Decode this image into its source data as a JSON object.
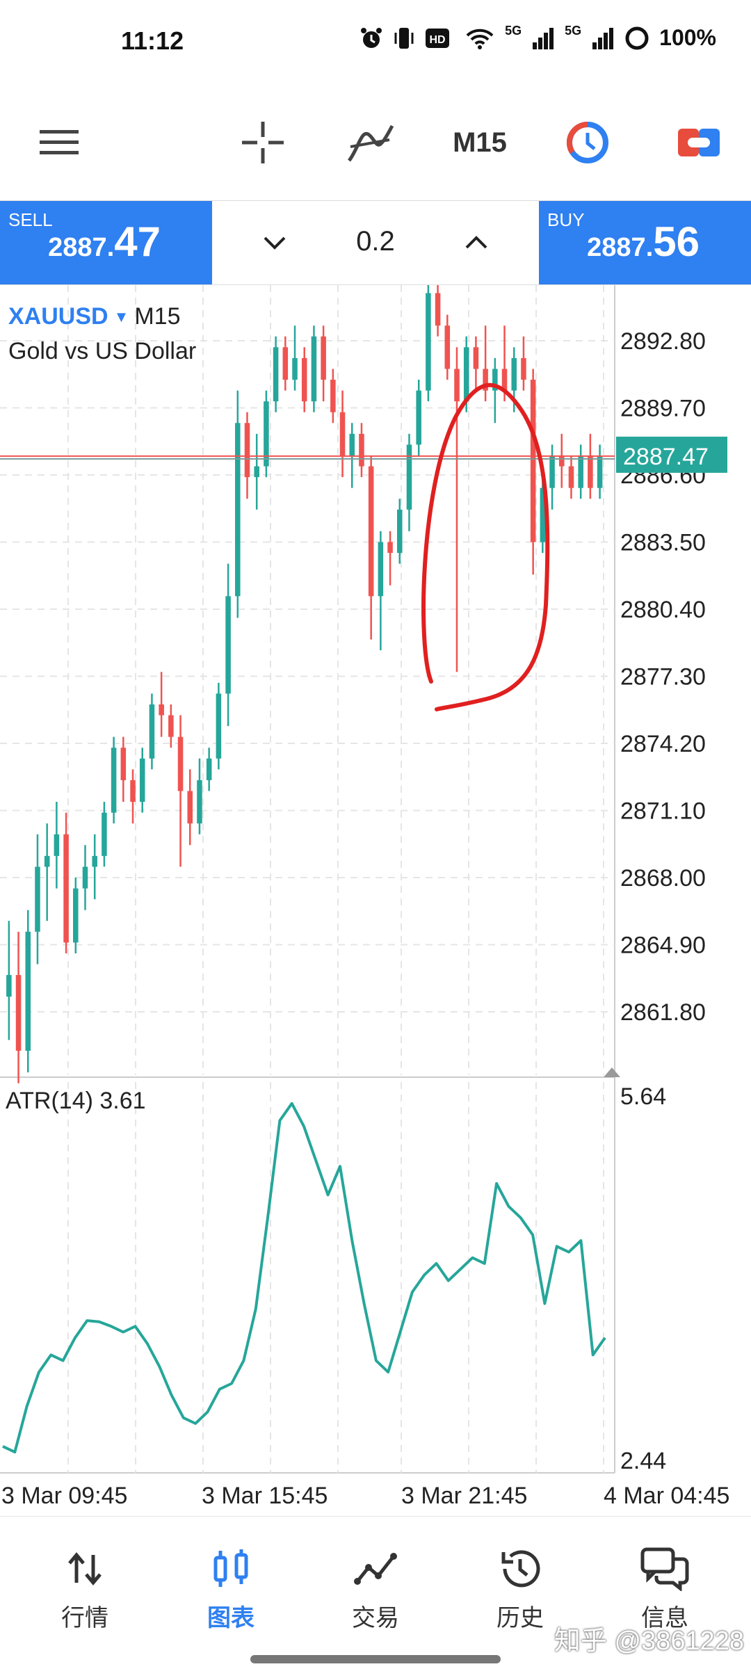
{
  "status_bar": {
    "time": "11:12",
    "network": "5G",
    "network2": "5G",
    "battery": "100%"
  },
  "toolbar": {
    "icons": [
      "menu-icon",
      "crosshair-icon",
      "indicators-icon",
      "clock-icon",
      "toggle-icon"
    ],
    "period": "M15"
  },
  "trade": {
    "sell_label": "SELL",
    "sell_prefix": "2887.",
    "sell_big": "47",
    "buy_label": "BUY",
    "buy_prefix": "2887.",
    "buy_big": "56",
    "lot": "0.2"
  },
  "chart": {
    "symbol": "XAUUSD",
    "period": "M15",
    "description": "Gold vs US Dollar",
    "current_price_label": "2887.47",
    "price_ticks": [
      "2892.80",
      "2889.70",
      "2886.60",
      "2883.50",
      "2880.40",
      "2877.30",
      "2874.20",
      "2871.10",
      "2868.00",
      "2864.90",
      "2861.80"
    ],
    "atr_label": "ATR(14) 3.61",
    "atr_ticks": [
      "5.64",
      "2.44"
    ],
    "time_labels": [
      "3 Mar 09:45",
      "3 Mar 15:45",
      "3 Mar 21:45",
      "4 Mar 04:45"
    ]
  },
  "chart_data": [
    {
      "type": "candlestick",
      "series": [
        {
          "name": "XAUUSD",
          "values": [
            {
              "o": 2862.5,
              "h": 2866.0,
              "l": 2860.5,
              "c": 2863.5
            },
            {
              "o": 2863.5,
              "h": 2865.5,
              "l": 2858.5,
              "c": 2860.0
            },
            {
              "o": 2860.0,
              "h": 2866.5,
              "l": 2859.0,
              "c": 2865.5
            },
            {
              "o": 2865.5,
              "h": 2870.0,
              "l": 2864.0,
              "c": 2868.5
            },
            {
              "o": 2868.5,
              "h": 2870.5,
              "l": 2866.0,
              "c": 2869.0
            },
            {
              "o": 2869.0,
              "h": 2871.5,
              "l": 2867.5,
              "c": 2870.0
            },
            {
              "o": 2870.0,
              "h": 2871.0,
              "l": 2864.5,
              "c": 2865.0
            },
            {
              "o": 2865.0,
              "h": 2868.0,
              "l": 2864.5,
              "c": 2867.5
            },
            {
              "o": 2867.5,
              "h": 2869.5,
              "l": 2866.5,
              "c": 2868.5
            },
            {
              "o": 2868.5,
              "h": 2870.0,
              "l": 2867.0,
              "c": 2869.0
            },
            {
              "o": 2869.0,
              "h": 2871.5,
              "l": 2868.5,
              "c": 2871.0
            },
            {
              "o": 2871.0,
              "h": 2874.5,
              "l": 2870.5,
              "c": 2874.0
            },
            {
              "o": 2874.0,
              "h": 2874.5,
              "l": 2871.5,
              "c": 2872.5
            },
            {
              "o": 2872.5,
              "h": 2873.0,
              "l": 2870.5,
              "c": 2871.5
            },
            {
              "o": 2871.5,
              "h": 2874.0,
              "l": 2871.0,
              "c": 2873.5
            },
            {
              "o": 2873.5,
              "h": 2876.5,
              "l": 2873.0,
              "c": 2876.0
            },
            {
              "o": 2876.0,
              "h": 2877.5,
              "l": 2874.5,
              "c": 2875.5
            },
            {
              "o": 2875.5,
              "h": 2876.0,
              "l": 2874.0,
              "c": 2874.5
            },
            {
              "o": 2874.5,
              "h": 2875.5,
              "l": 2868.5,
              "c": 2872.0
            },
            {
              "o": 2872.0,
              "h": 2873.0,
              "l": 2869.5,
              "c": 2870.5
            },
            {
              "o": 2870.5,
              "h": 2873.5,
              "l": 2870.0,
              "c": 2872.5
            },
            {
              "o": 2872.5,
              "h": 2874.0,
              "l": 2872.0,
              "c": 2873.5
            },
            {
              "o": 2873.5,
              "h": 2877.0,
              "l": 2873.0,
              "c": 2876.5
            },
            {
              "o": 2876.5,
              "h": 2882.5,
              "l": 2875.0,
              "c": 2881.0
            },
            {
              "o": 2881.0,
              "h": 2890.5,
              "l": 2880.0,
              "c": 2889.0
            },
            {
              "o": 2889.0,
              "h": 2889.5,
              "l": 2885.5,
              "c": 2886.5
            },
            {
              "o": 2886.5,
              "h": 2888.5,
              "l": 2885.0,
              "c": 2887.0
            },
            {
              "o": 2887.0,
              "h": 2890.5,
              "l": 2886.5,
              "c": 2890.0
            },
            {
              "o": 2890.0,
              "h": 2893.0,
              "l": 2889.5,
              "c": 2892.5
            },
            {
              "o": 2892.5,
              "h": 2893.0,
              "l": 2890.5,
              "c": 2891.0
            },
            {
              "o": 2891.0,
              "h": 2893.5,
              "l": 2890.5,
              "c": 2892.0
            },
            {
              "o": 2892.0,
              "h": 2892.5,
              "l": 2889.5,
              "c": 2890.0
            },
            {
              "o": 2890.0,
              "h": 2893.5,
              "l": 2889.5,
              "c": 2893.0
            },
            {
              "o": 2893.0,
              "h": 2893.5,
              "l": 2890.0,
              "c": 2891.0
            },
            {
              "o": 2891.0,
              "h": 2891.5,
              "l": 2889.0,
              "c": 2889.5
            },
            {
              "o": 2889.5,
              "h": 2890.5,
              "l": 2886.5,
              "c": 2887.5
            },
            {
              "o": 2887.5,
              "h": 2889.0,
              "l": 2886.0,
              "c": 2888.5
            },
            {
              "o": 2888.5,
              "h": 2889.0,
              "l": 2886.5,
              "c": 2887.0
            },
            {
              "o": 2887.0,
              "h": 2887.5,
              "l": 2879.0,
              "c": 2881.0
            },
            {
              "o": 2881.0,
              "h": 2884.0,
              "l": 2878.5,
              "c": 2883.5
            },
            {
              "o": 2883.5,
              "h": 2884.0,
              "l": 2881.5,
              "c": 2883.0
            },
            {
              "o": 2883.0,
              "h": 2885.5,
              "l": 2882.5,
              "c": 2885.0
            },
            {
              "o": 2885.0,
              "h": 2888.5,
              "l": 2884.0,
              "c": 2888.0
            },
            {
              "o": 2888.0,
              "h": 2891.0,
              "l": 2887.5,
              "c": 2890.5
            },
            {
              "o": 2890.5,
              "h": 2895.5,
              "l": 2890.0,
              "c": 2895.0
            },
            {
              "o": 2895.0,
              "h": 2895.5,
              "l": 2893.0,
              "c": 2893.5
            },
            {
              "o": 2893.5,
              "h": 2894.0,
              "l": 2891.0,
              "c": 2891.5
            },
            {
              "o": 2891.5,
              "h": 2892.5,
              "l": 2877.5,
              "c": 2890.0
            },
            {
              "o": 2890.0,
              "h": 2893.0,
              "l": 2889.5,
              "c": 2892.5
            },
            {
              "o": 2892.5,
              "h": 2893.0,
              "l": 2890.5,
              "c": 2891.5
            },
            {
              "o": 2891.5,
              "h": 2893.5,
              "l": 2890.0,
              "c": 2890.5
            },
            {
              "o": 2890.5,
              "h": 2892.0,
              "l": 2889.0,
              "c": 2891.5
            },
            {
              "o": 2891.5,
              "h": 2893.5,
              "l": 2890.0,
              "c": 2890.5
            },
            {
              "o": 2890.5,
              "h": 2892.5,
              "l": 2889.5,
              "c": 2892.0
            },
            {
              "o": 2892.0,
              "h": 2893.0,
              "l": 2890.5,
              "c": 2891.0
            },
            {
              "o": 2891.0,
              "h": 2891.5,
              "l": 2882.0,
              "c": 2883.5
            },
            {
              "o": 2883.5,
              "h": 2886.5,
              "l": 2883.0,
              "c": 2886.0
            },
            {
              "o": 2886.0,
              "h": 2888.0,
              "l": 2885.0,
              "c": 2887.5
            },
            {
              "o": 2887.5,
              "h": 2888.5,
              "l": 2886.0,
              "c": 2887.0
            },
            {
              "o": 2887.0,
              "h": 2887.5,
              "l": 2885.5,
              "c": 2886.0
            },
            {
              "o": 2886.0,
              "h": 2888.0,
              "l": 2885.5,
              "c": 2887.5
            },
            {
              "o": 2887.5,
              "h": 2888.5,
              "l": 2885.5,
              "c": 2886.0
            },
            {
              "o": 2886.0,
              "h": 2888.0,
              "l": 2885.5,
              "c": 2887.5
            }
          ]
        }
      ],
      "current_price": 2887.47,
      "ylim": [
        2860.0,
        2896.0
      ],
      "annotation": "hand-drawn red circle around long lower wick near 3 Mar 21:45"
    },
    {
      "type": "line",
      "series": [
        {
          "name": "ATR(14)",
          "values": [
            2.55,
            2.5,
            2.9,
            3.2,
            3.35,
            3.3,
            3.5,
            3.65,
            3.64,
            3.6,
            3.55,
            3.6,
            3.45,
            3.25,
            3.0,
            2.8,
            2.75,
            2.85,
            3.05,
            3.1,
            3.3,
            3.75,
            4.55,
            5.4,
            5.55,
            5.35,
            5.05,
            4.75,
            5.0,
            4.35,
            3.8,
            3.3,
            3.2,
            3.55,
            3.9,
            4.05,
            4.15,
            4.0,
            4.1,
            4.2,
            4.15,
            4.85,
            4.65,
            4.55,
            4.4,
            3.8,
            4.3,
            4.25,
            4.35,
            3.35,
            3.5
          ]
        }
      ],
      "ylim": [
        2.44,
        5.64
      ]
    }
  ],
  "nav": {
    "items": [
      {
        "label": "行情",
        "icon": "quotes-icon"
      },
      {
        "label": "图表",
        "icon": "chart-icon"
      },
      {
        "label": "交易",
        "icon": "trade-icon"
      },
      {
        "label": "历史",
        "icon": "history-icon"
      },
      {
        "label": "信息",
        "icon": "messages-icon"
      }
    ],
    "active_index": 1
  },
  "watermark": "知乎 @3861228",
  "colors": {
    "accent": "#2f80f0",
    "bull": "#26a69a",
    "bear": "#ef5350",
    "annotation": "#e02020"
  }
}
